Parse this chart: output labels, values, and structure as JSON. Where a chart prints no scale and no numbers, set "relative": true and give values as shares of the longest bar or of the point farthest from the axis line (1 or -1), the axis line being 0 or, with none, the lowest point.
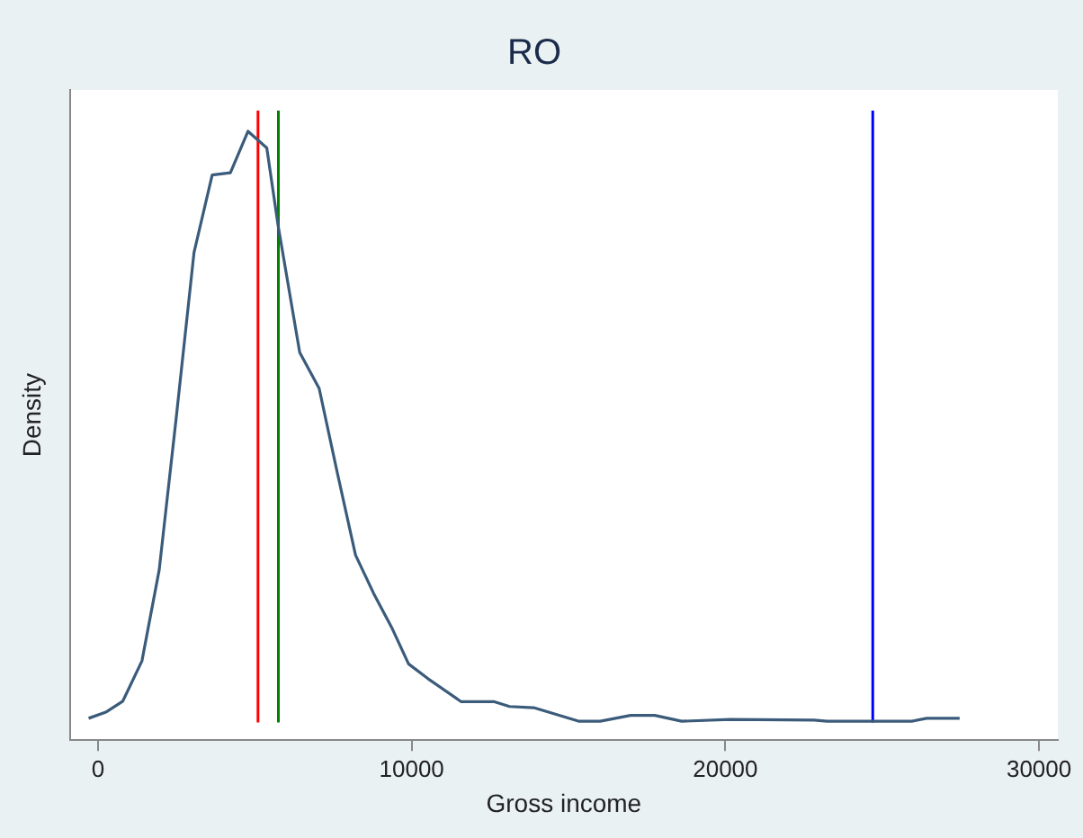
{
  "chart_data": {
    "type": "line",
    "title": "RO",
    "xlabel": "Gross income",
    "ylabel": "Density",
    "relative": true,
    "x": [
      -300,
      270,
      790,
      1400,
      1950,
      2490,
      3060,
      3640,
      4220,
      4780,
      5380,
      5740,
      6430,
      7050,
      7630,
      8210,
      8790,
      9360,
      9900,
      10520,
      11580,
      12640,
      13120,
      13890,
      15340,
      16010,
      16980,
      17750,
      18610,
      20160,
      22830,
      23240,
      25940,
      26420,
      27470
    ],
    "series": [
      {
        "color": "#3b5b7b",
        "values": [
          0.007,
          0.018,
          0.036,
          0.104,
          0.258,
          0.514,
          0.795,
          0.926,
          0.93,
          1,
          0.972,
          0.841,
          0.626,
          0.565,
          0.422,
          0.283,
          0.218,
          0.161,
          0.099,
          0.074,
          0.035,
          0.035,
          0.027,
          0.025,
          0.002,
          0.002,
          0.012,
          0.012,
          0.002,
          0.005,
          0.004,
          0.002,
          0.002,
          0.007,
          0.007
        ]
      }
    ],
    "xlim": [
      -900,
      30600
    ],
    "xticks": [
      0,
      10000,
      20000,
      30000
    ],
    "ref_lines": [
      {
        "axis": "x",
        "value": 5100,
        "color": "#ff0000"
      },
      {
        "axis": "x",
        "value": 5750,
        "color": "#008000"
      },
      {
        "axis": "x",
        "value": 24700,
        "color": "#0000ff"
      }
    ],
    "marker": "none",
    "line_style": "solid",
    "legend": false,
    "grid": false
  }
}
